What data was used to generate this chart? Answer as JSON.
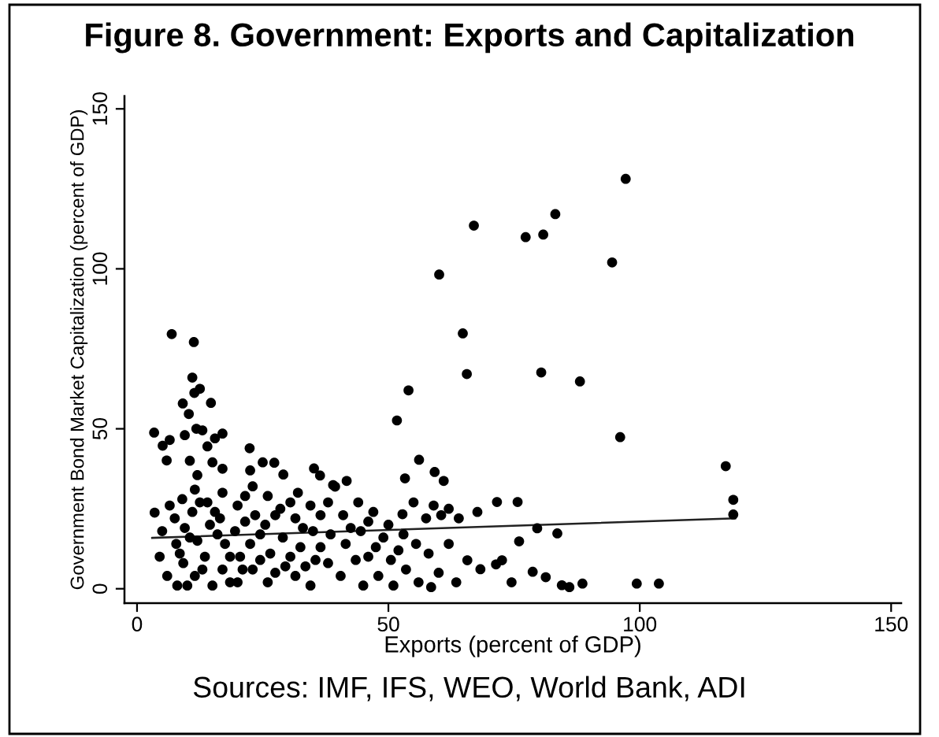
{
  "chart_data": {
    "type": "scatter",
    "title": "Figure 8. Government: Exports and Capitalization",
    "xlabel": "Exports (percent of GDP)",
    "ylabel": "Government Bond Market Capitalization (percent of GDP)",
    "annotations": [
      "Sources: IMF, IFS, WEO, World Bank, ADI"
    ],
    "xlim": [
      -2.5,
      152
    ],
    "ylim": [
      -4.5,
      154
    ],
    "xticks": [
      0,
      50,
      100,
      150
    ],
    "yticks": [
      0,
      50,
      100,
      150
    ],
    "series": [
      {
        "color": "#000000",
        "marker": "circle",
        "x": [
          97.2,
          67.0,
          83.2,
          77.3,
          80.8,
          94.5,
          60.1,
          64.8,
          65.6,
          80.4,
          88.1,
          54.0,
          51.7,
          96.1,
          56.1,
          53.3,
          59.2,
          61.0,
          117.1,
          118.6,
          118.6,
          67.7,
          71.6,
          75.7,
          79.6,
          83.6,
          76.0,
          71.4,
          72.6,
          68.3,
          74.5,
          78.7,
          81.3,
          84.5,
          86.0,
          88.6,
          99.4,
          103.8,
          65.7,
          52.8,
          39.0,
          6.9,
          11.3,
          11.0,
          11.4,
          12.5,
          9.1,
          14.7,
          10.3,
          11.8,
          3.4,
          5.1,
          6.5,
          5.9,
          9.5,
          13.0,
          15.5,
          17.0,
          14.0,
          10.5,
          15.0,
          17.0,
          12.0,
          22.4,
          25.0,
          27.3,
          22.5,
          29.1,
          35.2,
          36.4,
          39.4,
          41.7,
          3.5,
          4.5,
          5.0,
          6.0,
          7.5,
          7.8,
          8.0,
          9.0,
          9.5,
          9.2,
          11.5,
          11.0,
          12.0,
          11.5,
          14.0,
          14.5,
          13.5,
          15.0,
          17.0,
          16.5,
          17.5,
          17.0,
          20.0,
          19.5,
          20.5,
          20.0,
          23.0,
          23.5,
          22.5,
          23.0,
          26.0,
          25.5,
          26.5,
          26.0,
          28.5,
          29.0,
          29.5,
          32.0,
          31.5,
          32.5,
          31.5,
          34.5,
          35.0,
          35.5,
          34.5,
          38.0,
          38.5,
          38.0,
          41.0,
          41.5,
          40.5,
          44.0,
          44.5,
          43.5,
          45.0,
          47.0,
          47.5,
          48.0,
          50.0,
          50.5,
          51.0,
          53.0,
          53.5,
          55.0,
          55.5,
          56.0,
          57.5,
          59.0,
          60.5,
          62.0,
          64.0,
          58.0,
          60.0,
          62.0,
          63.5,
          58.5,
          6.5,
          8.5,
          10.5,
          10.0,
          12.5,
          13.0,
          15.5,
          16.0,
          18.5,
          18.5,
          21.5,
          21.5,
          21.0,
          24.5,
          24.5,
          27.5,
          27.5,
          30.5,
          30.5,
          33.0,
          33.5,
          36.5,
          36.5,
          42.5,
          46.0,
          46.0,
          49.0,
          52.0
        ],
        "values": [
          128.1,
          113.5,
          117.1,
          109.9,
          110.7,
          102.0,
          98.2,
          79.8,
          67.1,
          67.6,
          64.8,
          62.0,
          52.6,
          47.4,
          40.3,
          34.5,
          36.5,
          33.7,
          38.3,
          27.8,
          23.2,
          24.0,
          27.1,
          27.1,
          18.9,
          17.3,
          14.8,
          7.6,
          8.9,
          6.1,
          2.0,
          5.3,
          3.6,
          1.1,
          0.5,
          1.6,
          1.6,
          1.6,
          8.9,
          23.3,
          32.4,
          79.6,
          77.1,
          66.0,
          61.2,
          62.5,
          57.9,
          58.1,
          54.6,
          50.0,
          48.8,
          44.7,
          46.5,
          40.1,
          48.0,
          49.5,
          47.0,
          48.5,
          44.5,
          40.0,
          39.5,
          37.5,
          35.5,
          43.9,
          39.5,
          39.4,
          37.0,
          35.7,
          37.6,
          35.4,
          31.9,
          33.7,
          23.8,
          10,
          18,
          4,
          22,
          14,
          1,
          28,
          19,
          8,
          31,
          24,
          15,
          4,
          27,
          20,
          10,
          1,
          30,
          22,
          14,
          6,
          26,
          18,
          10,
          2,
          32,
          23,
          14,
          6,
          29,
          20,
          11,
          2,
          25,
          16,
          7,
          30,
          22,
          13,
          4,
          26,
          18,
          9,
          1,
          27,
          17,
          8,
          23,
          14,
          4,
          27,
          18,
          9,
          1,
          24,
          13,
          4,
          20,
          9,
          1,
          17,
          6,
          27,
          14,
          2,
          22,
          26,
          23,
          25,
          22,
          11,
          5,
          14,
          2,
          0.5,
          26,
          11,
          16,
          1,
          27,
          6,
          24,
          17,
          10,
          2,
          29,
          21,
          6,
          17,
          9,
          23,
          5,
          27,
          10,
          19,
          7,
          23,
          13,
          19,
          21,
          10,
          16,
          12
        ]
      },
      {
        "type": "line",
        "color": "#222222",
        "line_style": "solid",
        "x": [
          3,
          119
        ],
        "values": [
          15.9,
          22.0
        ]
      }
    ]
  }
}
